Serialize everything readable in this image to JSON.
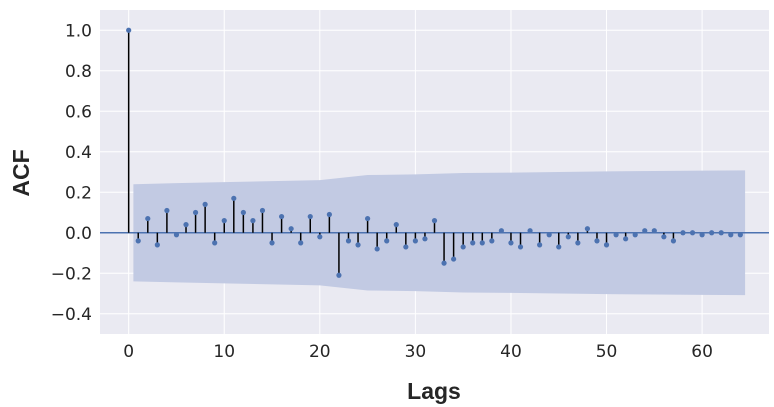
{
  "chart_data": {
    "type": "stem",
    "title": "",
    "xlabel": "Lags",
    "ylabel": "ACF",
    "xlim": [
      -3,
      67
    ],
    "ylim": [
      -0.5,
      1.1
    ],
    "xticks": [
      0,
      10,
      20,
      30,
      40,
      50,
      60
    ],
    "yticks": [
      -0.4,
      -0.2,
      0.0,
      0.2,
      0.4,
      0.6,
      0.8,
      1.0
    ],
    "xtick_labels": [
      "0",
      "10",
      "20",
      "30",
      "40",
      "50",
      "60"
    ],
    "ytick_labels": [
      "−0.4",
      "−0.2",
      "0.0",
      "0.2",
      "0.4",
      "0.6",
      "0.8",
      "1.0"
    ],
    "grid": true,
    "lags": [
      0,
      1,
      2,
      3,
      4,
      5,
      6,
      7,
      8,
      9,
      10,
      11,
      12,
      13,
      14,
      15,
      16,
      17,
      18,
      19,
      20,
      21,
      22,
      23,
      24,
      25,
      26,
      27,
      28,
      29,
      30,
      31,
      32,
      33,
      34,
      35,
      36,
      37,
      38,
      39,
      40,
      41,
      42,
      43,
      44,
      45,
      46,
      47,
      48,
      49,
      50,
      51,
      52,
      53,
      54,
      55,
      56,
      57,
      58,
      59,
      60,
      61,
      62,
      63,
      64
    ],
    "acf": [
      1.0,
      -0.04,
      0.07,
      -0.06,
      0.11,
      -0.01,
      0.04,
      0.1,
      0.14,
      -0.05,
      0.06,
      0.17,
      0.1,
      0.06,
      0.11,
      -0.05,
      0.08,
      0.02,
      -0.05,
      0.08,
      -0.02,
      0.09,
      -0.21,
      -0.04,
      -0.06,
      0.07,
      -0.08,
      -0.04,
      0.04,
      -0.07,
      -0.04,
      -0.03,
      0.06,
      -0.15,
      -0.13,
      -0.07,
      -0.05,
      -0.05,
      -0.04,
      0.01,
      -0.05,
      -0.07,
      0.01,
      -0.06,
      -0.01,
      -0.07,
      -0.02,
      -0.05,
      0.02,
      -0.04,
      -0.06,
      -0.01,
      -0.03,
      -0.01,
      0.01,
      0.01,
      -0.02,
      -0.04,
      0.0,
      0.0,
      -0.01,
      0.0,
      0.0,
      -0.01,
      -0.01
    ],
    "confidence_band": {
      "lags": [
        0.5,
        5,
        10,
        15,
        20,
        25,
        30,
        35,
        40,
        45,
        50,
        55,
        60,
        64.5
      ],
      "upper": [
        0.24,
        0.245,
        0.25,
        0.255,
        0.26,
        0.285,
        0.288,
        0.295,
        0.297,
        0.3,
        0.303,
        0.305,
        0.307,
        0.308
      ],
      "lower": [
        -0.24,
        -0.245,
        -0.25,
        -0.255,
        -0.26,
        -0.285,
        -0.288,
        -0.295,
        -0.297,
        -0.3,
        -0.303,
        -0.305,
        -0.307,
        -0.308
      ]
    },
    "colors": {
      "background": "#eaeaf2",
      "grid": "#ffffff",
      "stem": "#000000",
      "marker": "#4c72b0",
      "zero_line": "#4c72b0",
      "band": "#c2cae3"
    }
  }
}
